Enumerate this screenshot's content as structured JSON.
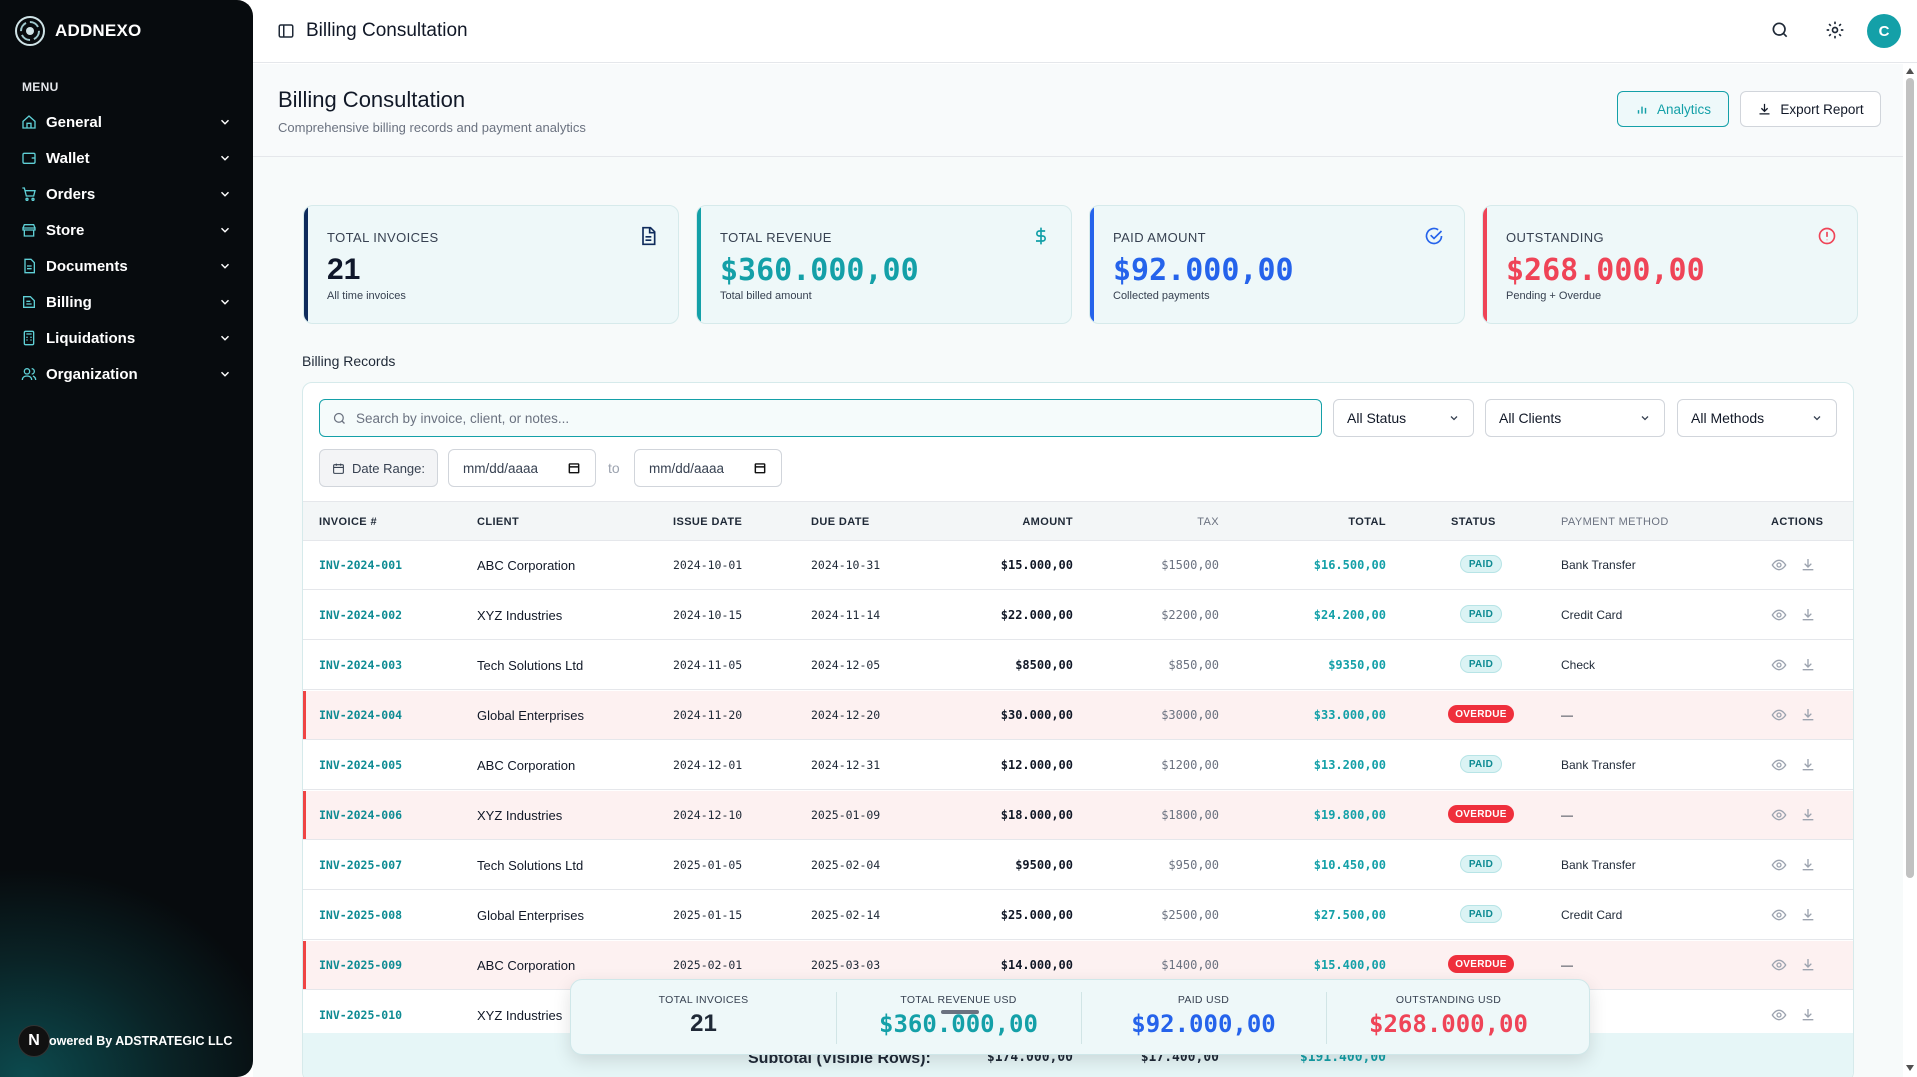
{
  "brand": {
    "name": "ADDNEXO"
  },
  "sidebar": {
    "menu_label": "MENU",
    "items": [
      {
        "label": "General",
        "icon": "home-icon"
      },
      {
        "label": "Wallet",
        "icon": "wallet-icon"
      },
      {
        "label": "Orders",
        "icon": "cart-icon"
      },
      {
        "label": "Store",
        "icon": "store-icon"
      },
      {
        "label": "Documents",
        "icon": "document-icon"
      },
      {
        "label": "Billing",
        "icon": "billing-icon"
      },
      {
        "label": "Liquidations",
        "icon": "calculator-icon"
      },
      {
        "label": "Organization",
        "icon": "users-icon"
      }
    ],
    "footer_logo": "N",
    "footer_text": "owered By ADSTRATEGIC LLC"
  },
  "topbar": {
    "title": "Billing Consultation",
    "avatar": "C"
  },
  "header": {
    "title": "Billing Consultation",
    "subtitle": "Comprehensive billing records and payment analytics",
    "analytics_label": "Analytics",
    "export_label": "Export Report"
  },
  "stats": [
    {
      "label": "TOTAL INVOICES",
      "value": "21",
      "sub": "All time invoices",
      "color": "#0f2b5c",
      "icon": "file-icon"
    },
    {
      "label": "TOTAL REVENUE",
      "value": "$360.000,00",
      "sub": "Total billed amount",
      "color": "#14a0a8",
      "icon": "dollar-icon"
    },
    {
      "label": "PAID AMOUNT",
      "value": "$92.000,00",
      "sub": "Collected payments",
      "color": "#2563eb",
      "icon": "check-circle-icon"
    },
    {
      "label": "OUTSTANDING",
      "value": "$268.000,00",
      "sub": "Pending + Overdue",
      "color": "#ef4457",
      "icon": "alert-circle-icon"
    }
  ],
  "records": {
    "title": "Billing Records",
    "search_placeholder": "Search by invoice, client, or notes...",
    "filters": {
      "status": "All Status",
      "clients": "All Clients",
      "methods": "All Methods"
    },
    "date_range_label": "Date Range:",
    "date_placeholder": "mm/dd/aaaa",
    "to_label": "to",
    "columns": [
      "INVOICE #",
      "CLIENT",
      "ISSUE DATE",
      "DUE DATE",
      "AMOUNT",
      "TAX",
      "TOTAL",
      "STATUS",
      "PAYMENT METHOD",
      "ACTIONS"
    ],
    "rows": [
      {
        "invoice": "INV-2024-001",
        "client": "ABC Corporation",
        "issue": "2024-10-01",
        "due": "2024-10-31",
        "amount": "$15.000,00",
        "tax": "$1500,00",
        "total": "$16.500,00",
        "status": "PAID",
        "method": "Bank Transfer"
      },
      {
        "invoice": "INV-2024-002",
        "client": "XYZ Industries",
        "issue": "2024-10-15",
        "due": "2024-11-14",
        "amount": "$22.000,00",
        "tax": "$2200,00",
        "total": "$24.200,00",
        "status": "PAID",
        "method": "Credit Card"
      },
      {
        "invoice": "INV-2024-003",
        "client": "Tech Solutions Ltd",
        "issue": "2024-11-05",
        "due": "2024-12-05",
        "amount": "$8500,00",
        "tax": "$850,00",
        "total": "$9350,00",
        "status": "PAID",
        "method": "Check"
      },
      {
        "invoice": "INV-2024-004",
        "client": "Global Enterprises",
        "issue": "2024-11-20",
        "due": "2024-12-20",
        "amount": "$30.000,00",
        "tax": "$3000,00",
        "total": "$33.000,00",
        "status": "OVERDUE",
        "method": "—"
      },
      {
        "invoice": "INV-2024-005",
        "client": "ABC Corporation",
        "issue": "2024-12-01",
        "due": "2024-12-31",
        "amount": "$12.000,00",
        "tax": "$1200,00",
        "total": "$13.200,00",
        "status": "PAID",
        "method": "Bank Transfer"
      },
      {
        "invoice": "INV-2024-006",
        "client": "XYZ Industries",
        "issue": "2024-12-10",
        "due": "2025-01-09",
        "amount": "$18.000,00",
        "tax": "$1800,00",
        "total": "$19.800,00",
        "status": "OVERDUE",
        "method": "—"
      },
      {
        "invoice": "INV-2025-007",
        "client": "Tech Solutions Ltd",
        "issue": "2025-01-05",
        "due": "2025-02-04",
        "amount": "$9500,00",
        "tax": "$950,00",
        "total": "$10.450,00",
        "status": "PAID",
        "method": "Bank Transfer"
      },
      {
        "invoice": "INV-2025-008",
        "client": "Global Enterprises",
        "issue": "2025-01-15",
        "due": "2025-02-14",
        "amount": "$25.000,00",
        "tax": "$2500,00",
        "total": "$27.500,00",
        "status": "PAID",
        "method": "Credit Card"
      },
      {
        "invoice": "INV-2025-009",
        "client": "ABC Corporation",
        "issue": "2025-02-01",
        "due": "2025-03-03",
        "amount": "$14.000,00",
        "tax": "$1400,00",
        "total": "$15.400,00",
        "status": "OVERDUE",
        "method": "—"
      },
      {
        "invoice": "INV-2025-010",
        "client": "XYZ Industries",
        "issue": "",
        "due": "",
        "amount": "",
        "tax": "",
        "total": "",
        "status": "",
        "method": ""
      }
    ],
    "subtotal": {
      "label": "Subtotal (Visible Rows):",
      "amount": "$174.000,00",
      "tax": "$17.400,00",
      "total": "$191.400,00"
    }
  },
  "summary": [
    {
      "label": "TOTAL INVOICES",
      "value": "21",
      "color": "#1f2937"
    },
    {
      "label": "TOTAL REVENUE USD",
      "value": "$360.000,00",
      "color": "#14a0a8"
    },
    {
      "label": "PAID USD",
      "value": "$92.000,00",
      "color": "#2563eb"
    },
    {
      "label": "OUTSTANDING USD",
      "value": "$268.000,00",
      "color": "#ef4457"
    }
  ]
}
